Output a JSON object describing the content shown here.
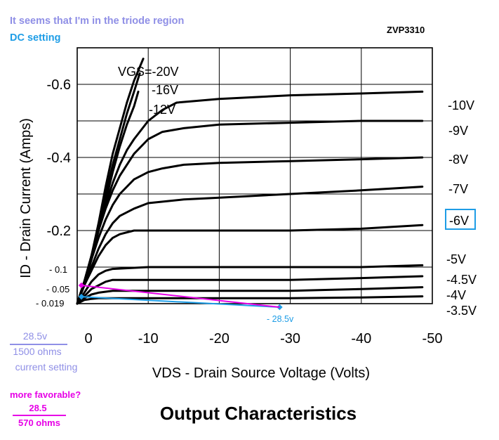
{
  "annotations": {
    "triode_note": "It seems that I'm in the triode region",
    "dc_setting": "DC setting",
    "part_number": "ZVP3310",
    "current_num": "28.5v",
    "current_den": "1500 ohms",
    "current_label": "current setting",
    "favorable_q": "more favorable?",
    "favorable_num": "28.5",
    "favorable_den": "570 ohms",
    "point_label": "- 28.5v",
    "tick_005": "- 0.05",
    "tick_0019": "- 0.019",
    "tick_01": "- 0.1"
  },
  "colors": {
    "curve": "#000000",
    "grid": "#000000",
    "triode_note": "#8f8fe6",
    "dc_setting": "#1e9de6",
    "current_setting": "#8f8fe6",
    "favorable": "#e600e6",
    "load_line_current": "#1e9de6",
    "load_line_favorable": "#e600e6"
  },
  "chart_data": {
    "type": "line",
    "title": "Output Characteristics",
    "xlabel": "VDS - Drain Source Voltage (Volts)",
    "ylabel": "ID - Drain Current (Amps)",
    "xlim": [
      0,
      -50
    ],
    "ylim": [
      0,
      -0.7
    ],
    "x_ticks": [
      "0",
      "-10",
      "-20",
      "-30",
      "-40",
      "-50"
    ],
    "x_tick_values": [
      0,
      -10,
      -20,
      -30,
      -40,
      -50
    ],
    "y_ticks": [
      "-0.6",
      "-0.4",
      "-0.2"
    ],
    "y_tick_values": [
      -0.6,
      -0.4,
      -0.2
    ],
    "grid": true,
    "series": [
      {
        "name": "VGS=-20V",
        "label": "VGS=-20V",
        "points": [
          [
            0,
            0
          ],
          [
            -1,
            -0.06
          ],
          [
            -2,
            -0.13
          ],
          [
            -3,
            -0.22
          ],
          [
            -4,
            -0.32
          ],
          [
            -5,
            -0.41
          ],
          [
            -6,
            -0.48
          ],
          [
            -7,
            -0.55
          ],
          [
            -8,
            -0.61
          ],
          [
            -9.3,
            -0.67
          ]
        ]
      },
      {
        "name": "-16V",
        "label": "-16V",
        "points": [
          [
            0,
            0
          ],
          [
            -1,
            -0.06
          ],
          [
            -2,
            -0.13
          ],
          [
            -3,
            -0.21
          ],
          [
            -4,
            -0.3
          ],
          [
            -5,
            -0.38
          ],
          [
            -6,
            -0.45
          ],
          [
            -7,
            -0.52
          ],
          [
            -8,
            -0.58
          ],
          [
            -8.8,
            -0.63
          ]
        ]
      },
      {
        "name": "-12V",
        "label": "-12V",
        "points": [
          [
            0,
            0
          ],
          [
            -1,
            -0.05
          ],
          [
            -2,
            -0.12
          ],
          [
            -3,
            -0.2
          ],
          [
            -4,
            -0.28
          ],
          [
            -5,
            -0.36
          ],
          [
            -6,
            -0.43
          ],
          [
            -7,
            -0.49
          ],
          [
            -8,
            -0.54
          ],
          [
            -8.6,
            -0.58
          ]
        ]
      },
      {
        "name": "-10V",
        "label": "-10V",
        "points": [
          [
            0,
            0
          ],
          [
            -1,
            -0.06
          ],
          [
            -2,
            -0.13
          ],
          [
            -3,
            -0.2
          ],
          [
            -4,
            -0.27
          ],
          [
            -5,
            -0.33
          ],
          [
            -6,
            -0.38
          ],
          [
            -7,
            -0.42
          ],
          [
            -8,
            -0.45
          ],
          [
            -10,
            -0.5
          ],
          [
            -12,
            -0.53
          ],
          [
            -14,
            -0.55
          ],
          [
            -20,
            -0.56
          ],
          [
            -30,
            -0.57
          ],
          [
            -40,
            -0.575
          ],
          [
            -48.6,
            -0.58
          ]
        ]
      },
      {
        "name": "-9V",
        "label": "-9V",
        "points": [
          [
            0,
            0
          ],
          [
            -1,
            -0.06
          ],
          [
            -2,
            -0.13
          ],
          [
            -3,
            -0.2
          ],
          [
            -4,
            -0.26
          ],
          [
            -5,
            -0.31
          ],
          [
            -6,
            -0.35
          ],
          [
            -8,
            -0.41
          ],
          [
            -10,
            -0.45
          ],
          [
            -12,
            -0.47
          ],
          [
            -15,
            -0.48
          ],
          [
            -20,
            -0.49
          ],
          [
            -30,
            -0.495
          ],
          [
            -40,
            -0.5
          ],
          [
            -48.6,
            -0.5
          ]
        ]
      },
      {
        "name": "-8V",
        "label": "-8V",
        "points": [
          [
            0,
            0
          ],
          [
            -1,
            -0.06
          ],
          [
            -2,
            -0.12
          ],
          [
            -3,
            -0.18
          ],
          [
            -4,
            -0.23
          ],
          [
            -5,
            -0.27
          ],
          [
            -6,
            -0.3
          ],
          [
            -8,
            -0.34
          ],
          [
            -10,
            -0.36
          ],
          [
            -12,
            -0.37
          ],
          [
            -15,
            -0.38
          ],
          [
            -20,
            -0.385
          ],
          [
            -30,
            -0.39
          ],
          [
            -40,
            -0.395
          ],
          [
            -48.6,
            -0.4
          ]
        ]
      },
      {
        "name": "-7V",
        "label": "-7V",
        "points": [
          [
            0,
            0
          ],
          [
            -1,
            -0.05
          ],
          [
            -2,
            -0.1
          ],
          [
            -3,
            -0.15
          ],
          [
            -4,
            -0.19
          ],
          [
            -5,
            -0.22
          ],
          [
            -6,
            -0.24
          ],
          [
            -8,
            -0.26
          ],
          [
            -10,
            -0.275
          ],
          [
            -15,
            -0.285
          ],
          [
            -20,
            -0.29
          ],
          [
            -30,
            -0.3
          ],
          [
            -40,
            -0.31
          ],
          [
            -48.6,
            -0.32
          ]
        ]
      },
      {
        "name": "-6V",
        "label": "-6V",
        "points": [
          [
            0,
            0
          ],
          [
            -1,
            -0.05
          ],
          [
            -2,
            -0.09
          ],
          [
            -3,
            -0.13
          ],
          [
            -4,
            -0.16
          ],
          [
            -5,
            -0.18
          ],
          [
            -6,
            -0.19
          ],
          [
            -8,
            -0.2
          ],
          [
            -10,
            -0.2
          ],
          [
            -20,
            -0.2
          ],
          [
            -30,
            -0.2
          ],
          [
            -40,
            -0.205
          ],
          [
            -48.6,
            -0.215
          ]
        ]
      },
      {
        "name": "-5V",
        "label": "-5V",
        "points": [
          [
            0,
            0
          ],
          [
            -1,
            -0.03
          ],
          [
            -2,
            -0.06
          ],
          [
            -3,
            -0.08
          ],
          [
            -4,
            -0.09
          ],
          [
            -5,
            -0.095
          ],
          [
            -10,
            -0.1
          ],
          [
            -20,
            -0.1
          ],
          [
            -30,
            -0.1
          ],
          [
            -40,
            -0.1
          ],
          [
            -48.6,
            -0.105
          ]
        ]
      },
      {
        "name": "-4.5V",
        "label": "-4.5V",
        "points": [
          [
            0,
            0
          ],
          [
            -1,
            -0.02
          ],
          [
            -2,
            -0.04
          ],
          [
            -3,
            -0.05
          ],
          [
            -4,
            -0.06
          ],
          [
            -5,
            -0.065
          ],
          [
            -10,
            -0.065
          ],
          [
            -20,
            -0.065
          ],
          [
            -30,
            -0.065
          ],
          [
            -40,
            -0.07
          ],
          [
            -48.6,
            -0.075
          ]
        ]
      },
      {
        "name": "-4V",
        "label": "-4V",
        "points": [
          [
            0,
            0
          ],
          [
            -1,
            -0.015
          ],
          [
            -2,
            -0.025
          ],
          [
            -3,
            -0.03
          ],
          [
            -5,
            -0.035
          ],
          [
            -10,
            -0.035
          ],
          [
            -20,
            -0.035
          ],
          [
            -30,
            -0.035
          ],
          [
            -40,
            -0.04
          ],
          [
            -48.6,
            -0.045
          ]
        ]
      },
      {
        "name": "-3.5V",
        "label": "-3.5V",
        "points": [
          [
            0,
            0
          ],
          [
            -1,
            -0.01
          ],
          [
            -2,
            -0.013
          ],
          [
            -3,
            -0.015
          ],
          [
            -10,
            -0.015
          ],
          [
            -20,
            -0.015
          ],
          [
            -30,
            -0.015
          ],
          [
            -40,
            -0.017
          ],
          [
            -48.6,
            -0.02
          ]
        ]
      }
    ],
    "load_lines": [
      {
        "label": "current setting",
        "points": [
          [
            0,
            -0.019
          ],
          [
            -28.5,
            0
          ]
        ]
      },
      {
        "label": "more favorable?",
        "points": [
          [
            0,
            -0.05
          ],
          [
            -28.5,
            0
          ]
        ]
      }
    ],
    "highlighted_series": "-6V"
  }
}
